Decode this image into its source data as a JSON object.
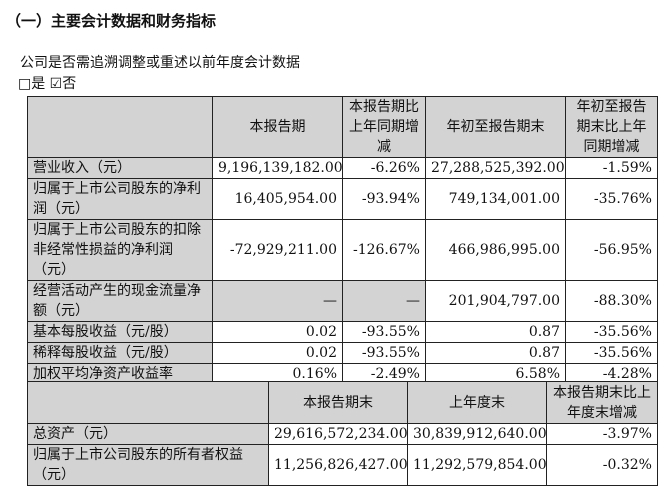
{
  "title": "（一）主要会计数据和财务指标",
  "question": "公司是否需追溯调整或重述以前年度会计数据",
  "options": "□是 ☑否",
  "table1": {
    "headers": [
      "",
      "本报告期",
      "本报告期比上年同期增减",
      "年初至报告期末",
      "年初至报告期末比上年同期增减"
    ],
    "rows": [
      [
        "营业收入（元）",
        "9,196,139,182.00",
        "-6.26%",
        "27,288,525,392.00",
        "-1.59%"
      ],
      [
        "归属于上市公司股东的净利润（元）",
        "16,405,954.00",
        "-93.94%",
        "749,134,001.00",
        "-35.76%"
      ],
      [
        "归属于上市公司股东的扣除非经常性损益的净利润（元）",
        "-72,929,211.00",
        "-126.67%",
        "466,986,995.00",
        "-56.95%"
      ],
      [
        "经营活动产生的现金流量净额（元）",
        "—",
        "—",
        "201,904,797.00",
        "-88.30%"
      ],
      [
        "基本每股收益（元/股）",
        "0.02",
        "-93.55%",
        "0.87",
        "-35.56%"
      ],
      [
        "稀释每股收益（元/股）",
        "0.02",
        "-93.55%",
        "0.87",
        "-35.56%"
      ],
      [
        "加权平均净资产收益率",
        "0.16%",
        "-2.49%",
        "6.58%",
        "-4.28%"
      ]
    ]
  },
  "table2": {
    "headers": [
      "",
      "本报告期末",
      "上年度末",
      "本报告期末比上年度末增减"
    ],
    "rows": [
      [
        "总资产（元）",
        "29,616,572,234.00",
        "30,839,912,640.00",
        "-3.97%"
      ],
      [
        "归属于上市公司股东的所有者权益（元）",
        "11,256,826,427.00",
        "11,292,579,854.00",
        "-0.32%"
      ]
    ]
  }
}
